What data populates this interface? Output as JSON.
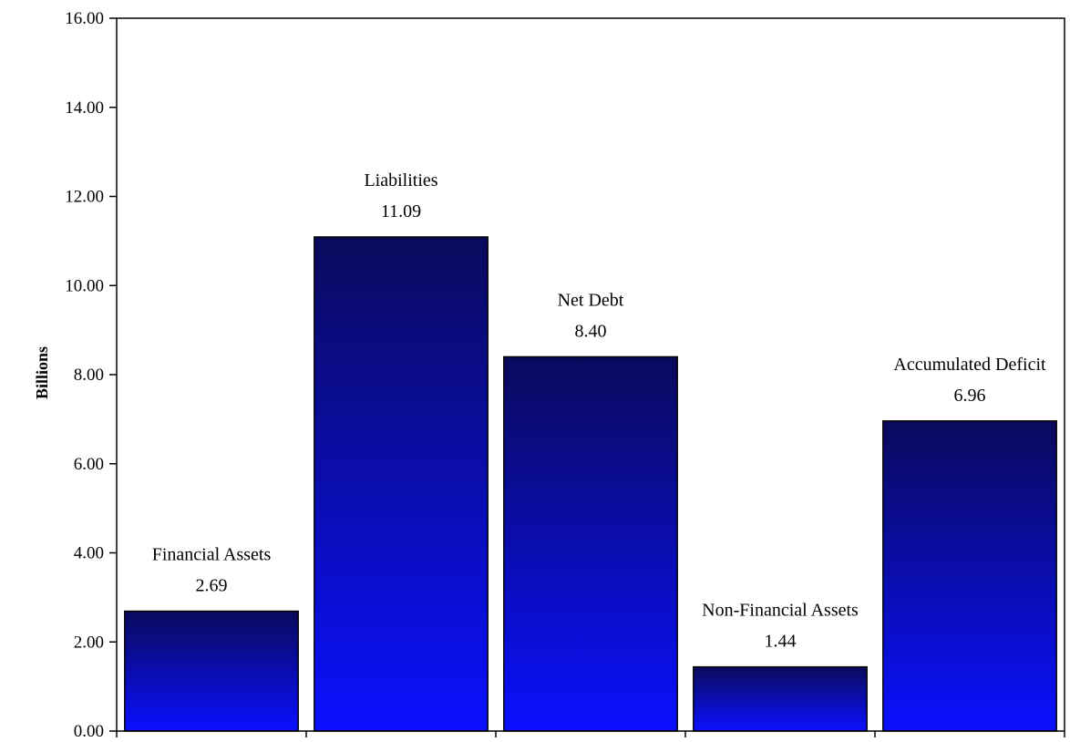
{
  "chart_data": {
    "type": "bar",
    "categories": [
      "Financial Assets",
      "Liabilities",
      "Net Debt",
      "Non-Financial Assets",
      "Accumulated Deficit"
    ],
    "values": [
      2.69,
      11.09,
      8.4,
      1.44,
      6.96
    ],
    "value_labels": [
      "2.69",
      "11.09",
      "8.40",
      "1.44",
      "6.96"
    ],
    "ylabel": "Billions",
    "ylim": [
      0,
      16
    ],
    "yticks": [
      "0.00",
      "2.00",
      "4.00",
      "6.00",
      "8.00",
      "10.00",
      "12.00",
      "14.00",
      "16.00"
    ],
    "grid": false,
    "legend": "none",
    "colors": {
      "bar_top": "#0a0a5c",
      "bar_bottom": "#0a10ff",
      "bar_outline": "#000000",
      "axis": "#000000"
    }
  }
}
